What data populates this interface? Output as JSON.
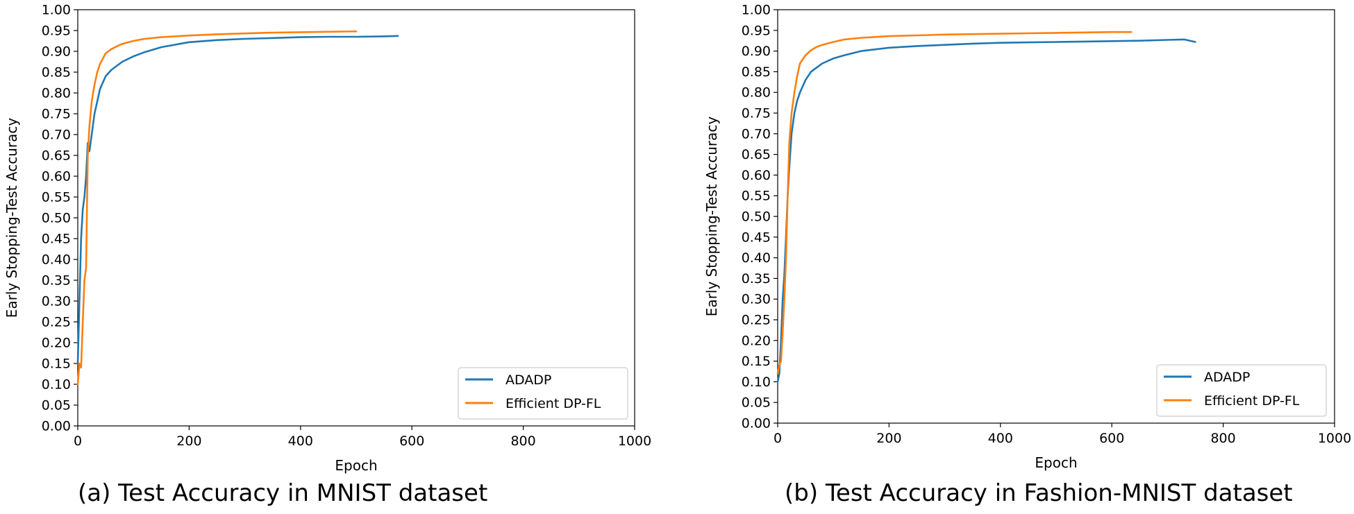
{
  "chart_data": [
    {
      "type": "line",
      "caption": "(a) Test Accuracy in MNIST dataset",
      "xlabel": "Epoch",
      "ylabel": "Early Stopping-Test Accuracy",
      "xlim": [
        0,
        1000
      ],
      "ylim": [
        0,
        1.0
      ],
      "xticks": [
        "0",
        "200",
        "400",
        "600",
        "800",
        "1000"
      ],
      "yticks": [
        "0.00",
        "0.05",
        "0.10",
        "0.15",
        "0.20",
        "0.25",
        "0.30",
        "0.35",
        "0.40",
        "0.45",
        "0.50",
        "0.55",
        "0.60",
        "0.65",
        "0.70",
        "0.75",
        "0.80",
        "0.85",
        "0.90",
        "0.95",
        "1.00"
      ],
      "legend_position": "lower-right",
      "series": [
        {
          "name": "ADADP",
          "color": "#1f77b4",
          "x": [
            0,
            3,
            6,
            9,
            12,
            15,
            18,
            21,
            25,
            30,
            35,
            40,
            50,
            60,
            70,
            80,
            100,
            120,
            150,
            200,
            250,
            300,
            350,
            400,
            450,
            500,
            550,
            575
          ],
          "y": [
            0.15,
            0.3,
            0.45,
            0.52,
            0.55,
            0.6,
            0.68,
            0.66,
            0.7,
            0.75,
            0.78,
            0.81,
            0.84,
            0.855,
            0.865,
            0.875,
            0.888,
            0.898,
            0.91,
            0.922,
            0.927,
            0.93,
            0.932,
            0.934,
            0.935,
            0.935,
            0.936,
            0.937
          ]
        },
        {
          "name": "Efficient DP-FL",
          "color": "#ff7f0e",
          "x": [
            0,
            3,
            6,
            9,
            12,
            15,
            18,
            21,
            25,
            30,
            35,
            40,
            50,
            60,
            70,
            80,
            100,
            120,
            150,
            200,
            250,
            300,
            350,
            400,
            450,
            500
          ],
          "y": [
            0.1,
            0.15,
            0.14,
            0.25,
            0.35,
            0.38,
            0.65,
            0.72,
            0.78,
            0.82,
            0.85,
            0.87,
            0.895,
            0.905,
            0.912,
            0.918,
            0.925,
            0.93,
            0.934,
            0.938,
            0.941,
            0.943,
            0.945,
            0.946,
            0.947,
            0.948
          ]
        }
      ]
    },
    {
      "type": "line",
      "caption": "(b) Test Accuracy in Fashion-MNIST dataset",
      "xlabel": "Epoch",
      "ylabel": "Early Stopping-Test Accuracy",
      "xlim": [
        0,
        1000
      ],
      "ylim": [
        0,
        1.0
      ],
      "xticks": [
        "0",
        "200",
        "400",
        "600",
        "800",
        "1000"
      ],
      "yticks": [
        "0.00",
        "0.05",
        "0.10",
        "0.15",
        "0.20",
        "0.25",
        "0.30",
        "0.35",
        "0.40",
        "0.45",
        "0.50",
        "0.55",
        "0.60",
        "0.65",
        "0.70",
        "0.75",
        "0.80",
        "0.85",
        "0.90",
        "0.95",
        "1.00"
      ],
      "legend_position": "lower-right",
      "series": [
        {
          "name": "ADADP",
          "color": "#1f77b4",
          "x": [
            0,
            3,
            6,
            9,
            12,
            15,
            18,
            21,
            25,
            30,
            35,
            40,
            50,
            60,
            70,
            80,
            100,
            120,
            150,
            200,
            250,
            300,
            350,
            400,
            450,
            500,
            550,
            600,
            650,
            700,
            730,
            750
          ],
          "y": [
            0.1,
            0.12,
            0.2,
            0.3,
            0.36,
            0.45,
            0.55,
            0.62,
            0.7,
            0.75,
            0.78,
            0.8,
            0.83,
            0.85,
            0.86,
            0.87,
            0.882,
            0.89,
            0.9,
            0.908,
            0.912,
            0.915,
            0.918,
            0.92,
            0.921,
            0.922,
            0.923,
            0.924,
            0.925,
            0.927,
            0.928,
            0.922
          ]
        },
        {
          "name": "Efficient DP-FL",
          "color": "#ff7f0e",
          "x": [
            0,
            3,
            6,
            9,
            12,
            15,
            18,
            21,
            25,
            30,
            35,
            40,
            50,
            60,
            70,
            80,
            100,
            120,
            150,
            200,
            250,
            300,
            350,
            400,
            450,
            500,
            550,
            600,
            635
          ],
          "y": [
            0.12,
            0.14,
            0.15,
            0.22,
            0.3,
            0.4,
            0.55,
            0.68,
            0.75,
            0.8,
            0.84,
            0.87,
            0.89,
            0.902,
            0.91,
            0.915,
            0.922,
            0.928,
            0.932,
            0.936,
            0.938,
            0.94,
            0.941,
            0.942,
            0.943,
            0.944,
            0.945,
            0.946,
            0.946
          ]
        }
      ]
    }
  ]
}
